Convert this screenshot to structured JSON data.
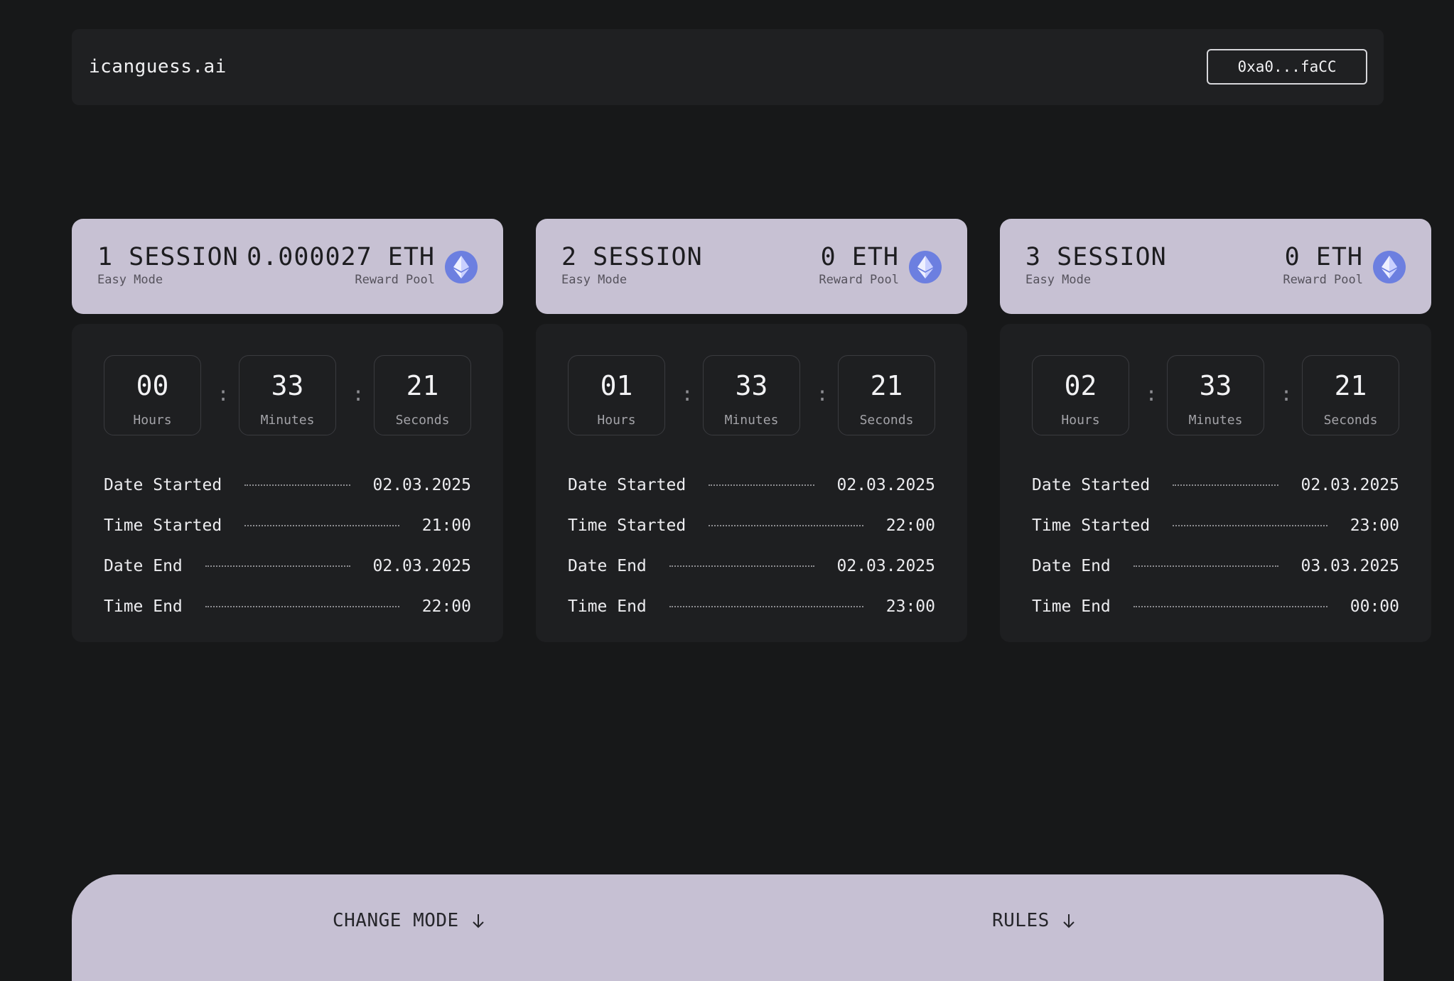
{
  "header": {
    "logo": "icanguess.ai",
    "wallet_label": "0xa0...faCC"
  },
  "accent_colors": {
    "card_header": "#c7c1d3",
    "eth_icon": "#6c7fe0",
    "background": "#171819",
    "card_body": "#1e1f21"
  },
  "icons": [
    "eth-icon",
    "arrow-down-icon"
  ],
  "sessions": [
    {
      "title": "1 SESSION",
      "mode": "Easy Mode",
      "pool": "0.000027 ETH",
      "pool_label": "Reward Pool",
      "timer": {
        "hours": "00",
        "minutes": "33",
        "seconds": "21",
        "hours_label": "Hours",
        "minutes_label": "Minutes",
        "seconds_label": "Seconds",
        "sep": ":"
      },
      "details": [
        {
          "label": "Date Started",
          "value": "02.03.2025"
        },
        {
          "label": "Time Started",
          "value": "21:00"
        },
        {
          "label": "Date End",
          "value": "02.03.2025"
        },
        {
          "label": "Time End",
          "value": "22:00"
        }
      ]
    },
    {
      "title": "2 SESSION",
      "mode": "Easy Mode",
      "pool": "0 ETH",
      "pool_label": "Reward Pool",
      "timer": {
        "hours": "01",
        "minutes": "33",
        "seconds": "21",
        "hours_label": "Hours",
        "minutes_label": "Minutes",
        "seconds_label": "Seconds",
        "sep": ":"
      },
      "details": [
        {
          "label": "Date Started",
          "value": "02.03.2025"
        },
        {
          "label": "Time Started",
          "value": "22:00"
        },
        {
          "label": "Date End",
          "value": "02.03.2025"
        },
        {
          "label": "Time End",
          "value": "23:00"
        }
      ]
    },
    {
      "title": "3 SESSION",
      "mode": "Easy Mode",
      "pool": "0 ETH",
      "pool_label": "Reward Pool",
      "timer": {
        "hours": "02",
        "minutes": "33",
        "seconds": "21",
        "hours_label": "Hours",
        "minutes_label": "Minutes",
        "seconds_label": "Seconds",
        "sep": ":"
      },
      "details": [
        {
          "label": "Date Started",
          "value": "02.03.2025"
        },
        {
          "label": "Time Started",
          "value": "23:00"
        },
        {
          "label": "Date End",
          "value": "03.03.2025"
        },
        {
          "label": "Time End",
          "value": "00:00"
        }
      ]
    }
  ],
  "footer": {
    "change_mode_label": "CHANGE MODE",
    "rules_label": "RULES"
  }
}
